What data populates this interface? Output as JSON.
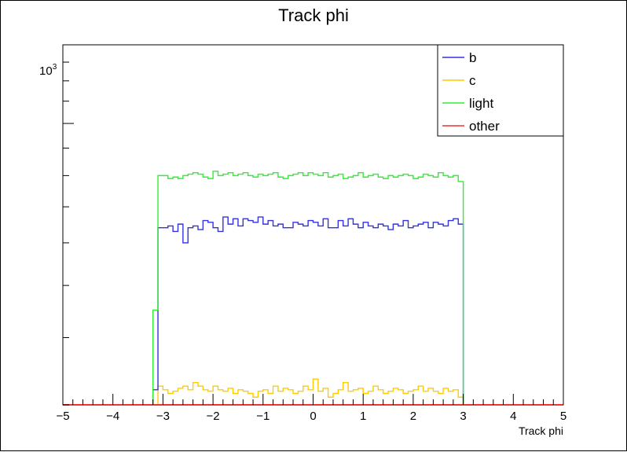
{
  "chart_data": {
    "type": "line",
    "title": "Track phi",
    "xlabel": "Track phi",
    "ylabel": "",
    "xlim": [
      -5,
      5
    ],
    "yscale": "log",
    "ylim": [
      300,
      1400
    ],
    "xticks": [
      "-5",
      "-4",
      "-3",
      "-2",
      "-1",
      "0",
      "1",
      "2",
      "3",
      "4",
      "5"
    ],
    "ytick_label": {
      "base": "10",
      "exponent": "3"
    },
    "legend_position": "top-right",
    "grid": false,
    "bins": {
      "start": -5,
      "width": 0.1,
      "count": 100
    },
    "series": [
      {
        "name": "b",
        "color": "#3333dd",
        "values": [
          300,
          300,
          300,
          300,
          300,
          300,
          300,
          300,
          300,
          300,
          300,
          300,
          300,
          300,
          300,
          300,
          300,
          300,
          320,
          640,
          640,
          645,
          630,
          650,
          600,
          640,
          645,
          635,
          660,
          655,
          640,
          630,
          670,
          650,
          665,
          645,
          665,
          660,
          655,
          670,
          650,
          660,
          645,
          650,
          640,
          640,
          655,
          650,
          645,
          660,
          655,
          645,
          665,
          640,
          640,
          660,
          645,
          665,
          650,
          640,
          655,
          645,
          640,
          650,
          645,
          635,
          650,
          645,
          660,
          640,
          645,
          650,
          655,
          640,
          655,
          650,
          645,
          660,
          665,
          650,
          300,
          300,
          300,
          300,
          300,
          300,
          300,
          300,
          300,
          300,
          300,
          300,
          300,
          300,
          300,
          300,
          300,
          300,
          300,
          300
        ]
      },
      {
        "name": "c",
        "color": "#ffcc00",
        "values": [
          300,
          300,
          300,
          300,
          300,
          300,
          300,
          300,
          300,
          300,
          300,
          300,
          300,
          300,
          300,
          300,
          300,
          300,
          300,
          325,
          320,
          315,
          318,
          322,
          325,
          320,
          330,
          325,
          320,
          318,
          325,
          320,
          318,
          322,
          315,
          320,
          318,
          315,
          310,
          318,
          320,
          315,
          325,
          318,
          322,
          320,
          315,
          318,
          325,
          320,
          335,
          318,
          322,
          310,
          315,
          320,
          330,
          318,
          320,
          322,
          315,
          318,
          325,
          320,
          315,
          318,
          322,
          320,
          315,
          318,
          320,
          325,
          318,
          322,
          318,
          315,
          322,
          318,
          320,
          310,
          300,
          300,
          300,
          300,
          300,
          300,
          300,
          300,
          300,
          300,
          300,
          300,
          300,
          300,
          300,
          300,
          300,
          300,
          300,
          300
        ]
      },
      {
        "name": "light",
        "color": "#33ee33",
        "values": [
          300,
          300,
          300,
          300,
          300,
          300,
          300,
          300,
          300,
          300,
          300,
          300,
          300,
          300,
          300,
          300,
          300,
          300,
          450,
          800,
          800,
          790,
          795,
          790,
          800,
          805,
          810,
          805,
          795,
          790,
          815,
          800,
          805,
          810,
          800,
          805,
          810,
          800,
          795,
          805,
          800,
          805,
          810,
          795,
          790,
          800,
          805,
          810,
          800,
          810,
          805,
          800,
          810,
          795,
          800,
          805,
          790,
          795,
          800,
          810,
          795,
          800,
          805,
          795,
          790,
          800,
          795,
          800,
          805,
          800,
          790,
          795,
          805,
          800,
          795,
          810,
          800,
          795,
          800,
          780,
          300,
          300,
          300,
          300,
          300,
          300,
          300,
          300,
          300,
          300,
          300,
          300,
          300,
          300,
          300,
          300,
          300,
          300,
          300,
          300
        ]
      },
      {
        "name": "other",
        "color": "#ee3333",
        "values": [
          300,
          300,
          300,
          300,
          300,
          300,
          300,
          300,
          300,
          300,
          300,
          300,
          300,
          300,
          300,
          300,
          300,
          300,
          300,
          300,
          300,
          300,
          300,
          300,
          300,
          300,
          300,
          300,
          300,
          300,
          300,
          300,
          300,
          300,
          300,
          300,
          300,
          300,
          300,
          300,
          300,
          300,
          300,
          300,
          300,
          300,
          300,
          300,
          300,
          300,
          300,
          300,
          300,
          300,
          300,
          300,
          300,
          300,
          300,
          300,
          300,
          300,
          300,
          300,
          300,
          300,
          300,
          300,
          300,
          300,
          300,
          300,
          300,
          300,
          300,
          300,
          300,
          300,
          300,
          300,
          300,
          300,
          300,
          300,
          300,
          300,
          300,
          300,
          300,
          300,
          300,
          300,
          300,
          300,
          300,
          300,
          300,
          300,
          300,
          300
        ]
      }
    ]
  }
}
